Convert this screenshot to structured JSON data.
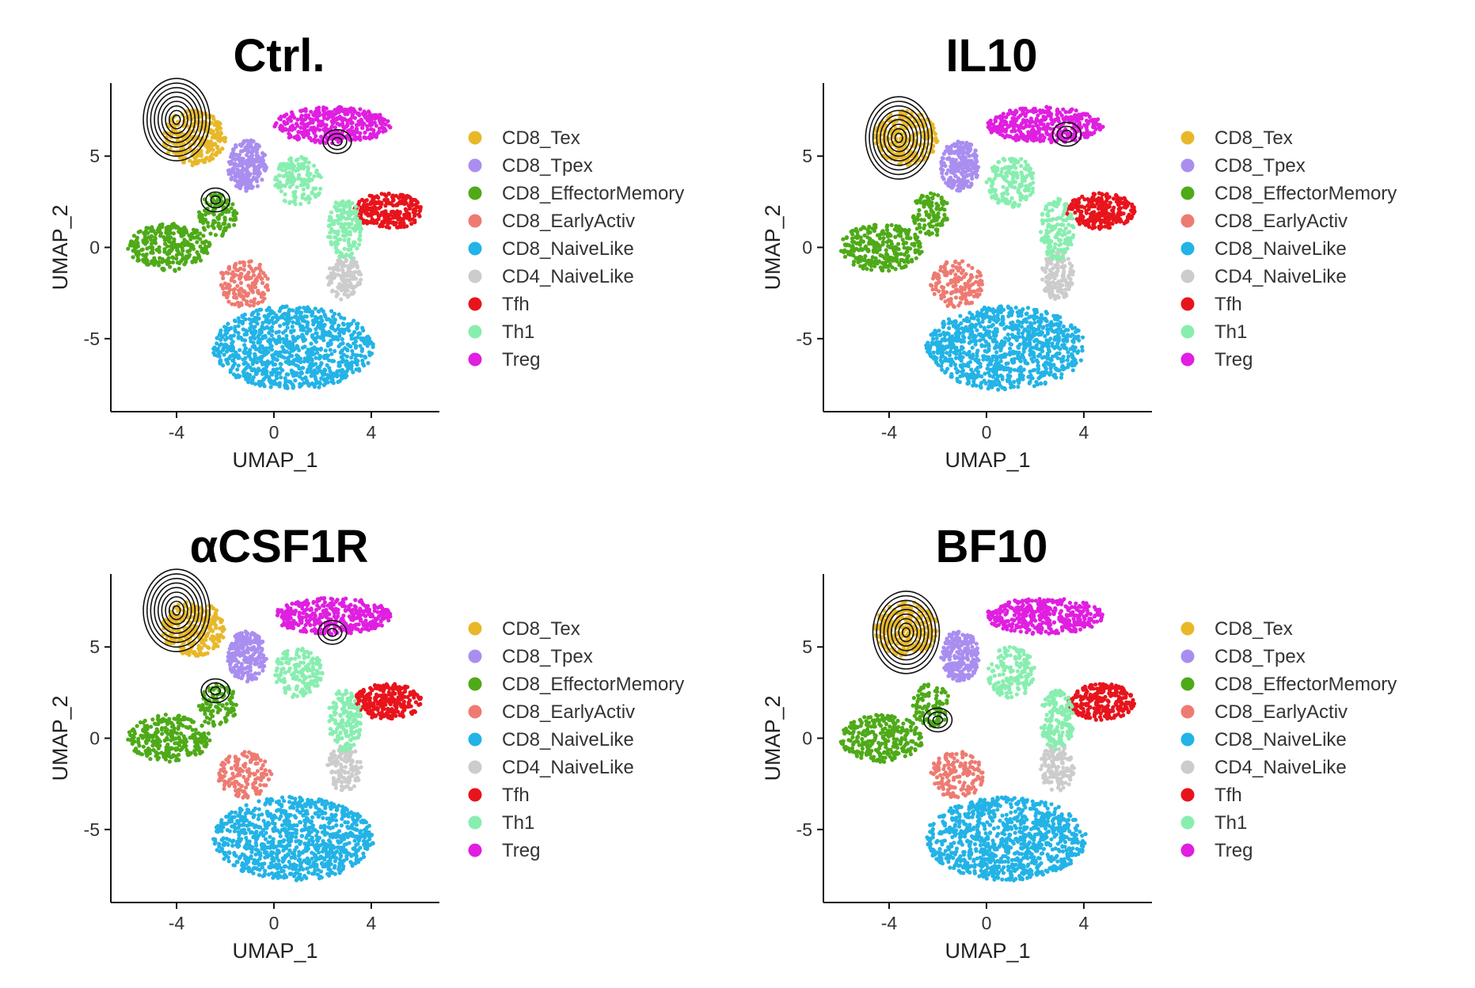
{
  "chart_data": [
    {
      "type": "scatter",
      "title": "Ctrl.",
      "xlabel": "UMAP_1",
      "ylabel": "UMAP_2",
      "xticks": [
        "-4",
        "0",
        "4"
      ],
      "yticks": [
        "5",
        "0",
        "-5"
      ],
      "xlim": [
        -6.7,
        6.8
      ],
      "ylim": [
        -9,
        9
      ],
      "legend_position": "right",
      "contour": [
        {
          "cx": -4.0,
          "cy": 7.0
        },
        {
          "cx": -2.4,
          "cy": 2.6
        },
        {
          "cx": 2.6,
          "cy": 5.8
        }
      ],
      "series": [
        {
          "name": "CD8_Tex",
          "color": "#E8B829"
        },
        {
          "name": "CD8_Tpex",
          "color": "#A98EF0"
        },
        {
          "name": "CD8_EffectorMemory",
          "color": "#4EAA18"
        },
        {
          "name": "CD8_EarlyActiv",
          "color": "#EE7B72"
        },
        {
          "name": "CD8_NaiveLike",
          "color": "#23B3E6"
        },
        {
          "name": "CD4_NaiveLike",
          "color": "#CCCCCC"
        },
        {
          "name": "Tfh",
          "color": "#E8141C"
        },
        {
          "name": "Th1",
          "color": "#88EEB0"
        },
        {
          "name": "Treg",
          "color": "#E01FE0"
        }
      ]
    },
    {
      "type": "scatter",
      "title": "IL10",
      "xlabel": "UMAP_1",
      "ylabel": "UMAP_2",
      "xticks": [
        "-4",
        "0",
        "4"
      ],
      "yticks": [
        "5",
        "0",
        "-5"
      ],
      "xlim": [
        -6.7,
        6.8
      ],
      "ylim": [
        -9,
        9
      ],
      "legend_position": "right",
      "contour": [
        {
          "cx": -3.6,
          "cy": 6.0
        },
        {
          "cx": 3.3,
          "cy": 6.2
        }
      ],
      "series": [
        {
          "name": "CD8_Tex",
          "color": "#E8B829"
        },
        {
          "name": "CD8_Tpex",
          "color": "#A98EF0"
        },
        {
          "name": "CD8_EffectorMemory",
          "color": "#4EAA18"
        },
        {
          "name": "CD8_EarlyActiv",
          "color": "#EE7B72"
        },
        {
          "name": "CD8_NaiveLike",
          "color": "#23B3E6"
        },
        {
          "name": "CD4_NaiveLike",
          "color": "#CCCCCC"
        },
        {
          "name": "Tfh",
          "color": "#E8141C"
        },
        {
          "name": "Th1",
          "color": "#88EEB0"
        },
        {
          "name": "Treg",
          "color": "#E01FE0"
        }
      ]
    },
    {
      "type": "scatter",
      "title": "αCSF1R",
      "xlabel": "UMAP_1",
      "ylabel": "UMAP_2",
      "xticks": [
        "-4",
        "0",
        "4"
      ],
      "yticks": [
        "5",
        "0",
        "-5"
      ],
      "xlim": [
        -6.7,
        6.8
      ],
      "ylim": [
        -9,
        9
      ],
      "legend_position": "right",
      "contour": [
        {
          "cx": -4.0,
          "cy": 7.0
        },
        {
          "cx": -2.4,
          "cy": 2.6
        },
        {
          "cx": 2.4,
          "cy": 5.8
        }
      ],
      "series": [
        {
          "name": "CD8_Tex",
          "color": "#E8B829"
        },
        {
          "name": "CD8_Tpex",
          "color": "#A98EF0"
        },
        {
          "name": "CD8_EffectorMemory",
          "color": "#4EAA18"
        },
        {
          "name": "CD8_EarlyActiv",
          "color": "#EE7B72"
        },
        {
          "name": "CD8_NaiveLike",
          "color": "#23B3E6"
        },
        {
          "name": "CD4_NaiveLike",
          "color": "#CCCCCC"
        },
        {
          "name": "Tfh",
          "color": "#E8141C"
        },
        {
          "name": "Th1",
          "color": "#88EEB0"
        },
        {
          "name": "Treg",
          "color": "#E01FE0"
        }
      ]
    },
    {
      "type": "scatter",
      "title": "BF10",
      "xlabel": "UMAP_1",
      "ylabel": "UMAP_2",
      "xticks": [
        "-4",
        "0",
        "4"
      ],
      "yticks": [
        "5",
        "0",
        "-5"
      ],
      "xlim": [
        -6.7,
        6.8
      ],
      "ylim": [
        -9,
        9
      ],
      "legend_position": "right",
      "contour": [
        {
          "cx": -3.3,
          "cy": 5.8
        },
        {
          "cx": -2.0,
          "cy": 1.0
        }
      ],
      "series": [
        {
          "name": "CD8_Tex",
          "color": "#E8B829"
        },
        {
          "name": "CD8_Tpex",
          "color": "#A98EF0"
        },
        {
          "name": "CD8_EffectorMemory",
          "color": "#4EAA18"
        },
        {
          "name": "CD8_EarlyActiv",
          "color": "#EE7B72"
        },
        {
          "name": "CD8_NaiveLike",
          "color": "#23B3E6"
        },
        {
          "name": "CD4_NaiveLike",
          "color": "#CCCCCC"
        },
        {
          "name": "Tfh",
          "color": "#E8141C"
        },
        {
          "name": "Th1",
          "color": "#88EEB0"
        },
        {
          "name": "Treg",
          "color": "#E01FE0"
        }
      ]
    }
  ]
}
